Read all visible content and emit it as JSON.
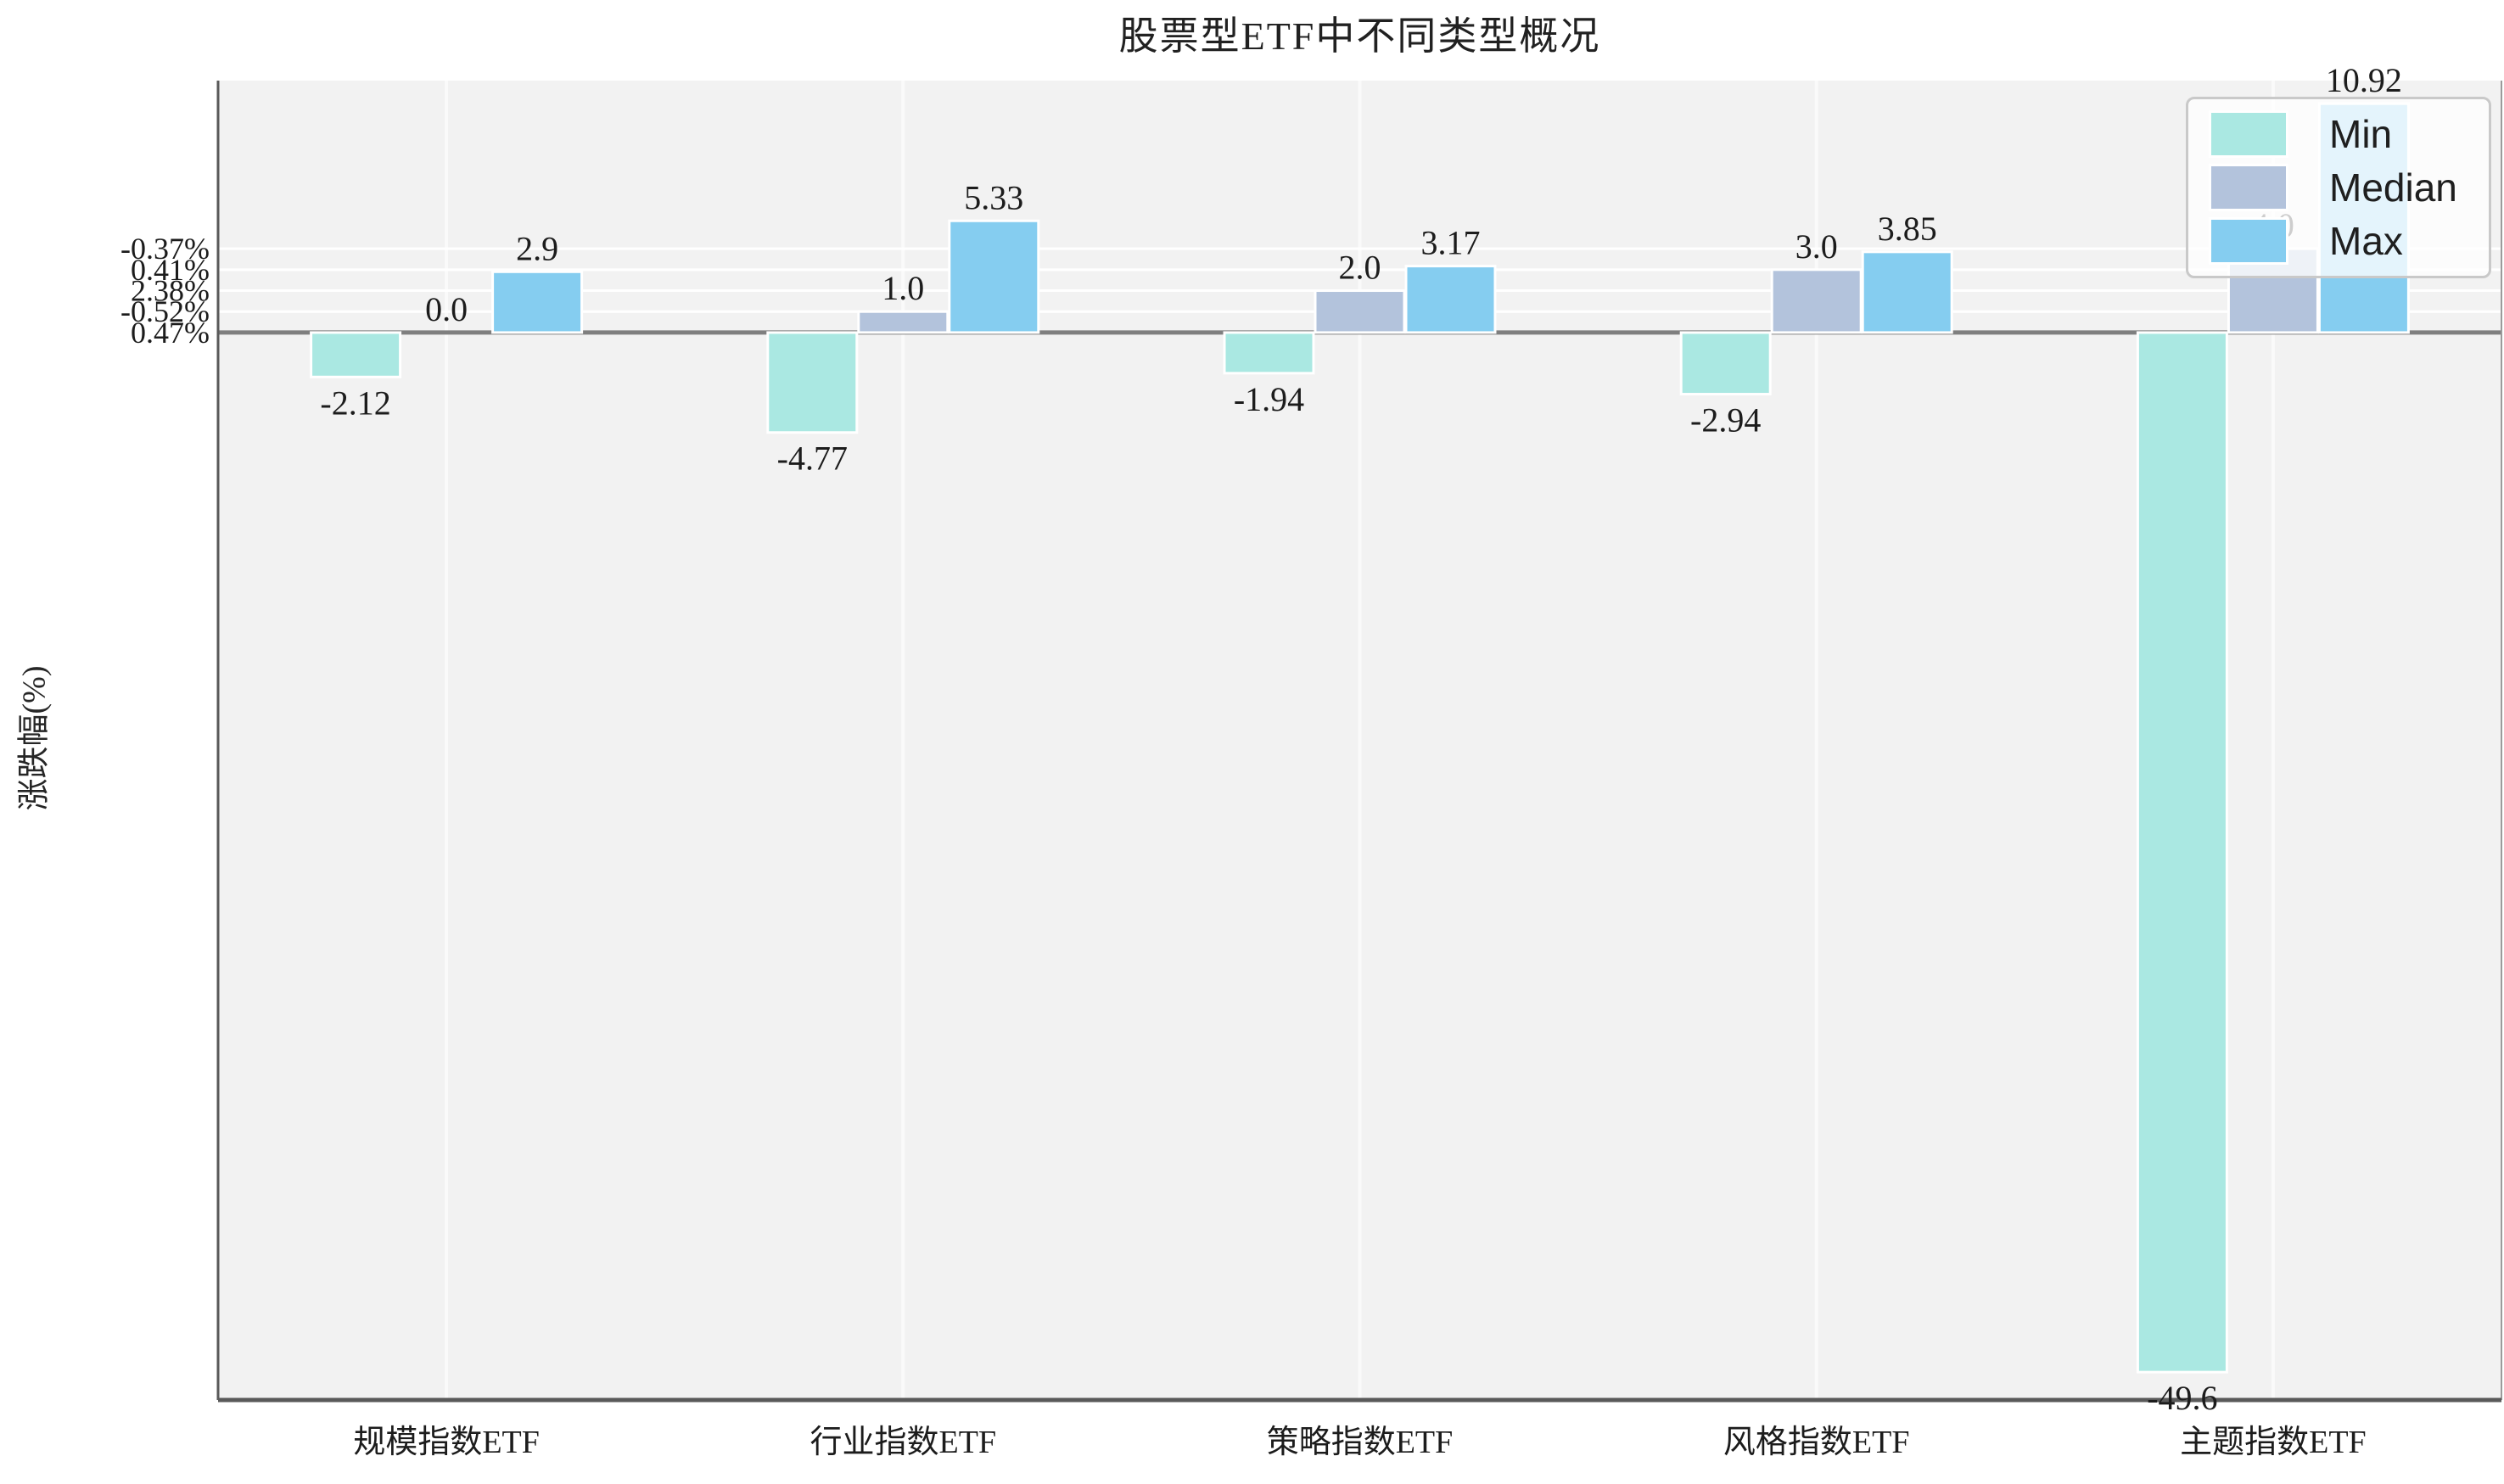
{
  "title": "股票型ETF中不同类型概况",
  "ylabel": "涨跌幅(%)",
  "colors": {
    "min_bar": "#aae8e2",
    "median_bar": "#b3c3dc",
    "max_bar": "#85cdf0",
    "plot_background": "#f2f2f2",
    "zero_line": "#7f7f7f",
    "spine": "#5a5a5a",
    "gridline": "#ffffff"
  },
  "chart_data": {
    "type": "bar",
    "title": "股票型ETF中不同类型概况",
    "xlabel": "",
    "ylabel": "涨跌幅(%)",
    "categories": [
      "规模指数ETF",
      "行业指数ETF",
      "策略指数ETF",
      "风格指数ETF",
      "主题指数ETF"
    ],
    "series": [
      {
        "name": "Min",
        "color": "#aae8e2",
        "values": [
          -2.12,
          -4.77,
          -1.94,
          -2.94,
          -49.6
        ]
      },
      {
        "name": "Median",
        "color": "#b3c3dc",
        "values": [
          0.0,
          1.0,
          2.0,
          3.0,
          4.0
        ]
      },
      {
        "name": "Max",
        "color": "#85cdf0",
        "values": [
          2.9,
          5.33,
          3.17,
          3.85,
          10.92
        ]
      }
    ],
    "bar_value_labels": [
      [
        "-2.12",
        "-4.77",
        "-1.94",
        "-2.94",
        "-49.6"
      ],
      [
        "0.0",
        "1.0",
        "2.0",
        "3.0",
        "4.0"
      ],
      [
        "2.9",
        "5.33",
        "3.17",
        "3.85",
        "10.92"
      ]
    ],
    "yticks": [
      {
        "value": 4,
        "label": "-0.37%"
      },
      {
        "value": 3,
        "label": "0.41%"
      },
      {
        "value": 2,
        "label": "2.38%"
      },
      {
        "value": 1,
        "label": "-0.52%"
      },
      {
        "value": 0,
        "label": "0.47%"
      }
    ],
    "ylim": [
      -50.93,
      12.02
    ],
    "grid": true,
    "zero_line": true,
    "legend_position": "upper right",
    "legend_entries": [
      "Min",
      "Median",
      "Max"
    ]
  }
}
